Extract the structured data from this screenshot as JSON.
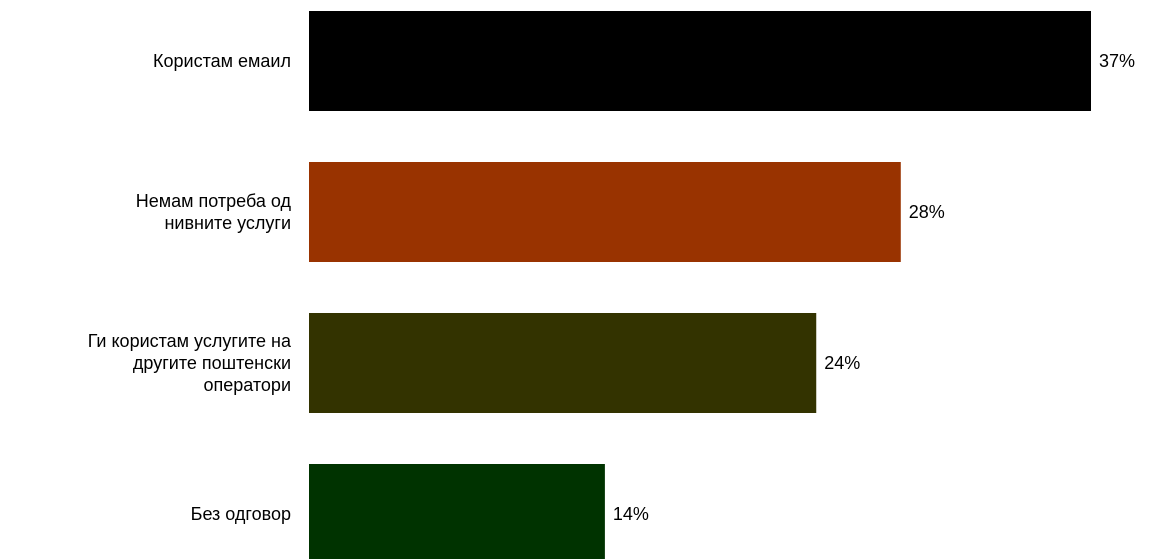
{
  "chart_data": {
    "type": "bar",
    "orientation": "horizontal",
    "categories": [
      [
        "Користам емаил"
      ],
      [
        "Немам потреба од",
        "нивните услуги"
      ],
      [
        "Ги користам услугите на",
        "другите поштенски",
        "оператори"
      ],
      [
        "Без одговор"
      ]
    ],
    "values": [
      37,
      28,
      24,
      14
    ],
    "value_labels": [
      "37%",
      "28%",
      "24%",
      "14%"
    ],
    "colors": [
      "#000000",
      "#993300",
      "#333300",
      "#003300"
    ],
    "title": "",
    "xlabel": "",
    "ylabel": "",
    "xlim": [
      0,
      37
    ],
    "grid": false,
    "legend": "none"
  }
}
